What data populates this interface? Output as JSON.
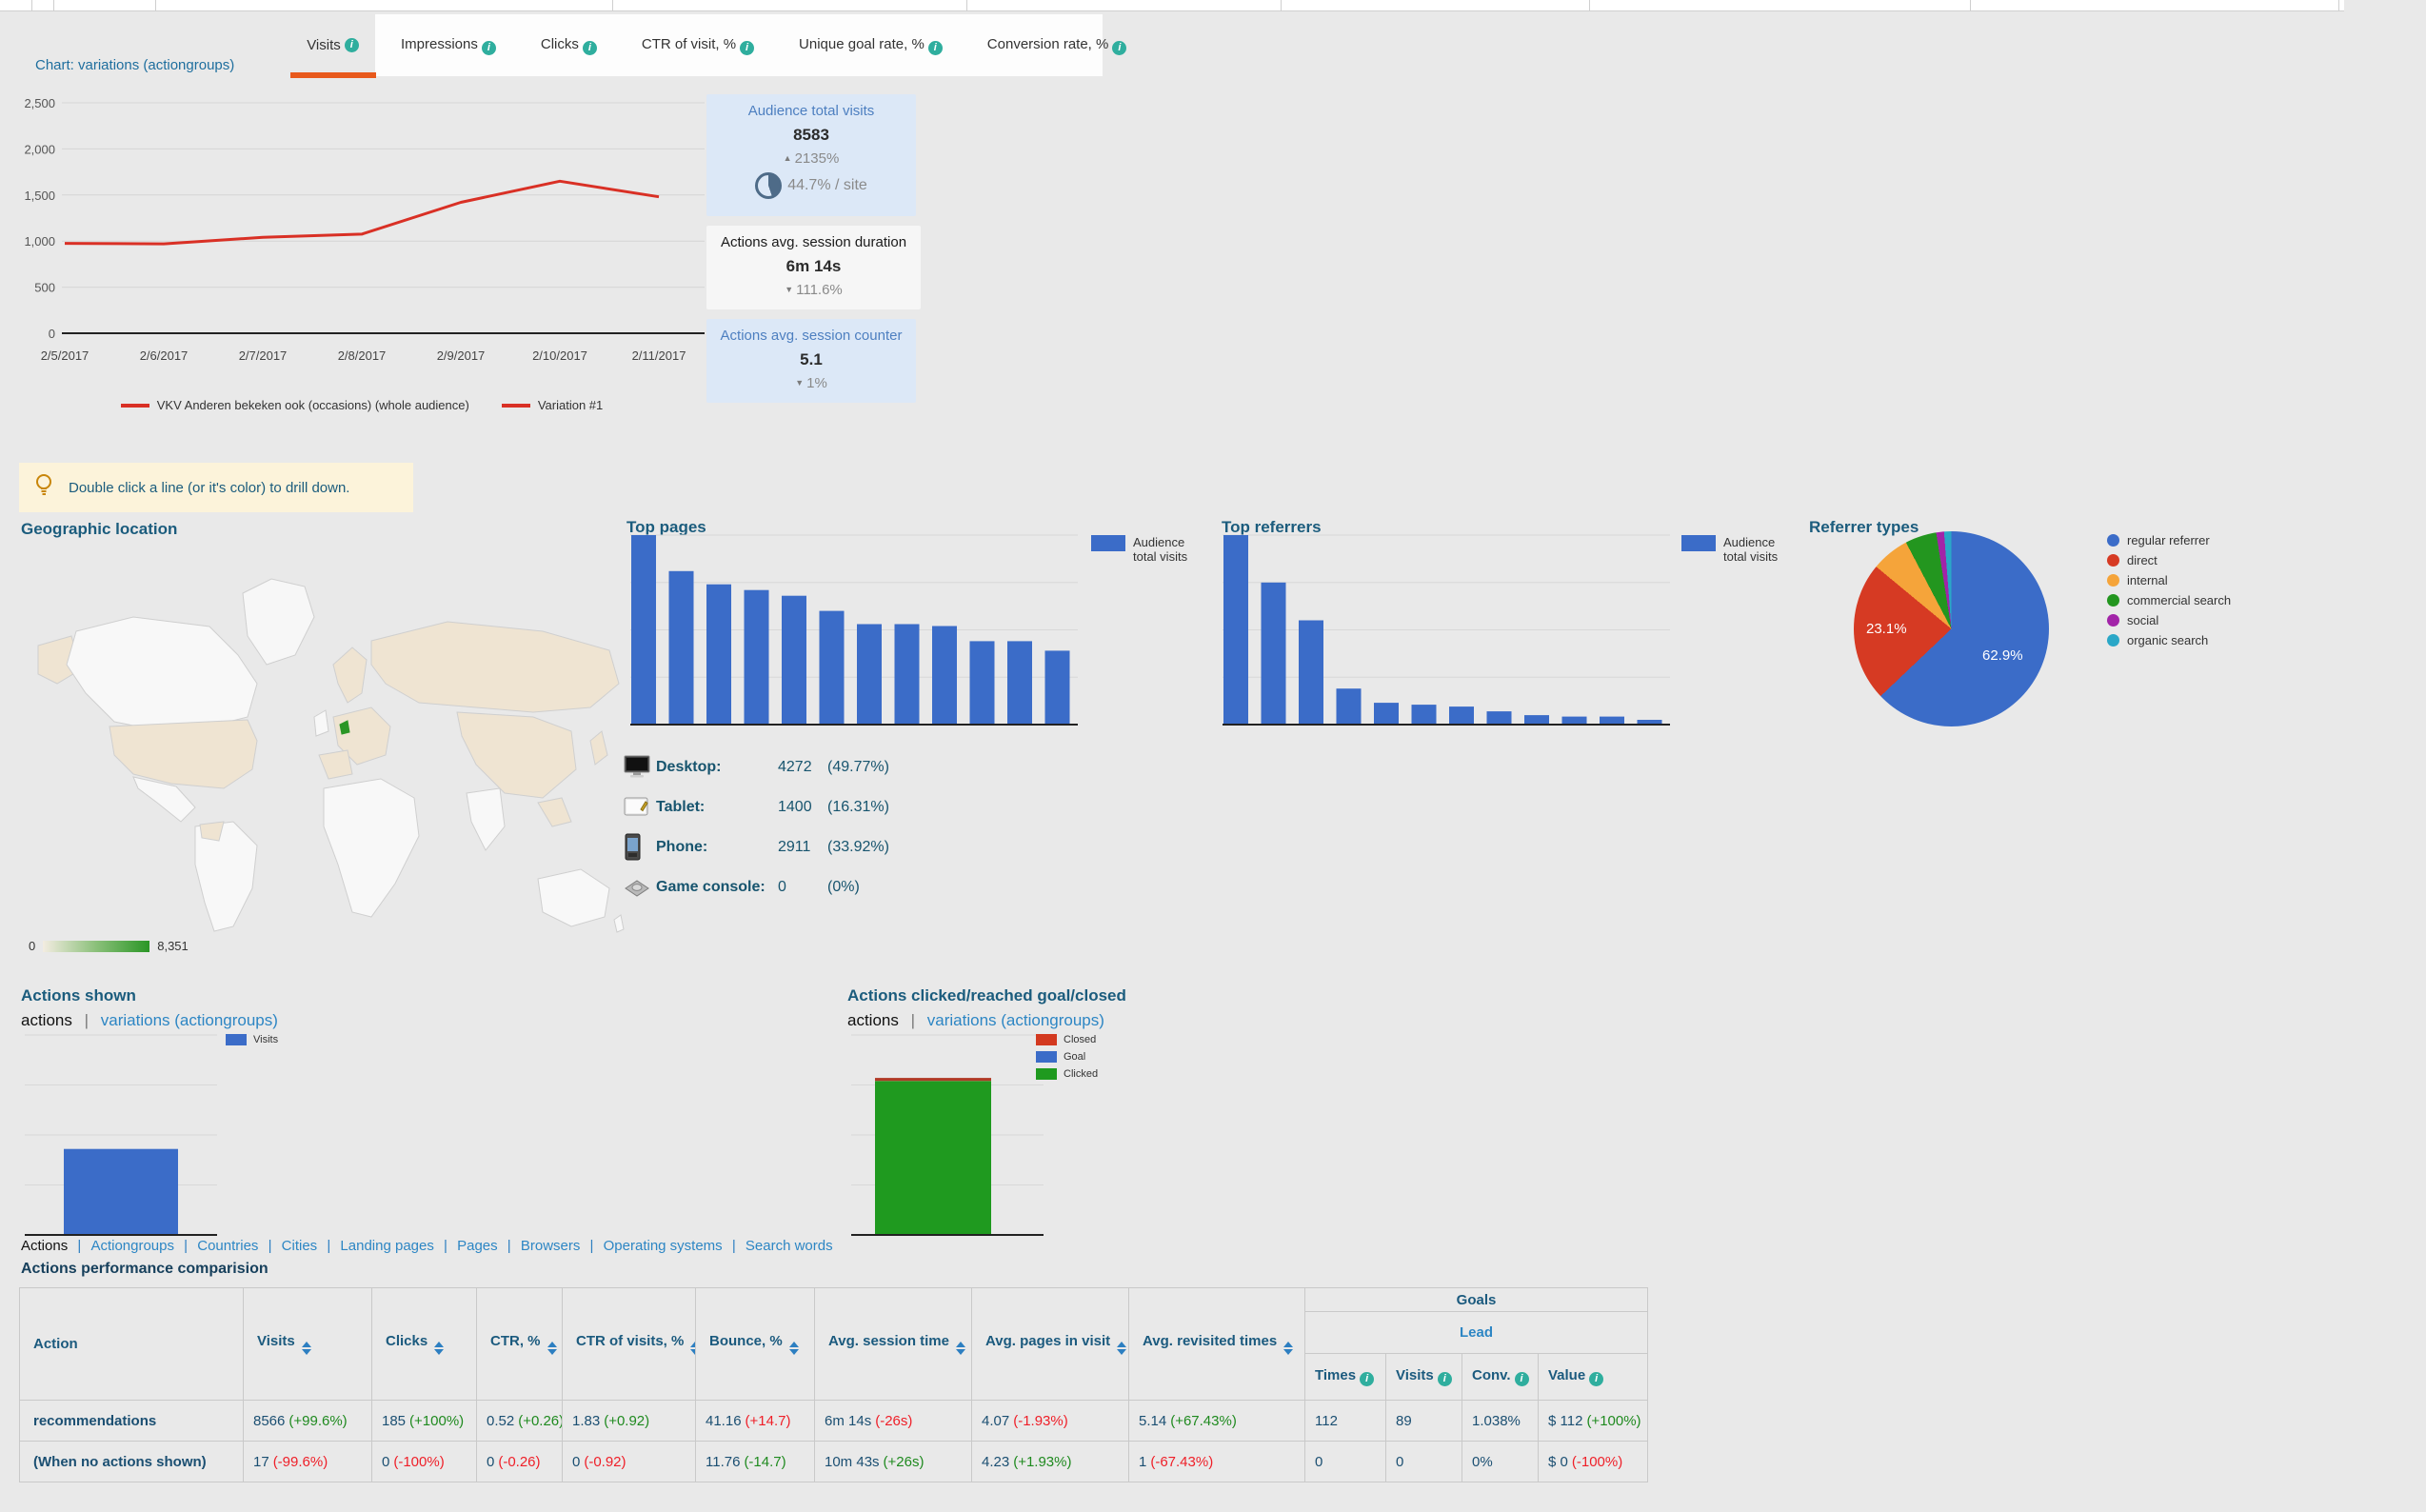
{
  "tabs": [
    {
      "label": "Visits",
      "active": true
    },
    {
      "label": "Impressions",
      "active": false
    },
    {
      "label": "Clicks",
      "active": false
    },
    {
      "label": "CTR of visit, %",
      "active": false
    },
    {
      "label": "Unique goal rate, %",
      "active": false
    },
    {
      "label": "Conversion rate, %",
      "active": false
    }
  ],
  "accent": {
    "active_tab_underline": "#e8591c",
    "info_icon": "#2fae9e",
    "link_blue": "#2d86c4",
    "header_blue": "#1b5c7d",
    "bar_blue": "#3b6cc8"
  },
  "chart_data": [
    {
      "id": "variations-line",
      "type": "line",
      "title": "Chart: variations (actiongroups)",
      "x": [
        "2/5/2017",
        "2/6/2017",
        "2/7/2017",
        "2/8/2017",
        "2/9/2017",
        "2/10/2017",
        "2/11/2017"
      ],
      "y_ticks": [
        "2,500",
        "2,000",
        "1,500",
        "1,000",
        "500",
        "0"
      ],
      "ylim": [
        0,
        2500
      ],
      "grid": true,
      "series": [
        {
          "name": "VKV Anderen bekeken ook (occasions) (whole audience)",
          "color": "#d93025",
          "values": [
            975,
            970,
            1040,
            1075,
            1420,
            1650,
            1480
          ]
        }
      ],
      "legend": [
        {
          "label": "VKV Anderen bekeken ook (occasions) (whole audience)",
          "color": "#d93025"
        },
        {
          "label": "Variation #1",
          "color": "#d93025"
        }
      ],
      "legend_position": "bottom"
    },
    {
      "id": "top-pages",
      "type": "bar",
      "title": "Top pages",
      "unit": "relative-% (no axis labels shown)",
      "values": [
        100,
        81,
        74,
        71,
        68,
        60,
        53,
        53,
        52,
        44,
        44,
        39
      ],
      "color": "#3b6cc8",
      "legend": [
        {
          "label": "Audience total visits",
          "color": "#3b6cc8"
        }
      ],
      "legend_position": "right"
    },
    {
      "id": "top-referrers",
      "type": "bar",
      "title": "Top referrers",
      "unit": "relative-% (no axis labels shown)",
      "values": [
        100,
        75,
        55,
        19,
        11.5,
        10.5,
        9.5,
        7,
        5,
        4.2,
        4.2,
        2.5
      ],
      "color": "#3b6cc8",
      "legend": [
        {
          "label": "Audience total visits",
          "color": "#3b6cc8"
        }
      ],
      "legend_position": "right"
    },
    {
      "id": "referrer-types",
      "type": "pie",
      "title": "Referrer types",
      "slices": [
        {
          "label": "regular referrer",
          "value": 62.9,
          "color": "#3b6cc8",
          "pct_label": "62.9%"
        },
        {
          "label": "direct",
          "value": 23.1,
          "color": "#d63a23",
          "pct_label": "23.1%"
        },
        {
          "label": "internal",
          "value": 6.3,
          "color": "#f5a43a",
          "pct_label": ""
        },
        {
          "label": "commercial search",
          "value": 5.2,
          "color": "#23961f",
          "pct_label": ""
        },
        {
          "label": "social",
          "value": 1.3,
          "color": "#a224a8",
          "pct_label": ""
        },
        {
          "label": "organic search",
          "value": 1.2,
          "color": "#2aa7c7",
          "pct_label": ""
        }
      ],
      "legend_position": "right"
    },
    {
      "id": "actions-shown",
      "type": "bar",
      "title": "Actions shown",
      "unit": "relative-% (no axis labels shown)",
      "values": [
        43
      ],
      "color": "#3b6cc8",
      "legend": [
        {
          "label": "Visits",
          "color": "#3b6cc8"
        }
      ],
      "legend_position": "right"
    },
    {
      "id": "actions-clicked",
      "type": "stacked-bar",
      "title": "Actions clicked/reached goal/closed",
      "unit": "relative-% (no axis labels shown)",
      "segments": [
        {
          "label": "Clicked",
          "value": 77,
          "color": "#1f9a1f"
        },
        {
          "label": "Closed",
          "value": 1.5,
          "color": "#b03a26"
        }
      ],
      "legend": [
        {
          "label": "Closed",
          "color": "#d3391f"
        },
        {
          "label": "Goal",
          "color": "#3b6cc8"
        },
        {
          "label": "Clicked",
          "color": "#1f9a1f"
        }
      ],
      "legend_position": "right"
    }
  ],
  "stat_cards": [
    {
      "title": "Audience total visits",
      "value": "8583",
      "change": "2135%",
      "change_dir": "up",
      "extra": "44.7% / site",
      "pie_pct": 44.7,
      "bg": "#dce8f7",
      "title_color": "#4d7fc0"
    },
    {
      "title": "Actions avg. session duration",
      "value": "6m 14s",
      "change": "111.6%",
      "change_dir": "down",
      "extra": "",
      "bg": "#f6f6f6",
      "title_color": "#1a1a1a"
    },
    {
      "title": "Actions avg. session counter",
      "value": "5.1",
      "change": "1%",
      "change_dir": "down",
      "extra": "",
      "bg": "#dce8f7",
      "title_color": "#4d7fc0"
    }
  ],
  "tip": {
    "text": "Double click a line (or it's color) to drill down."
  },
  "geographic": {
    "title": "Geographic location",
    "legend_min": "0",
    "legend_max": "8,351",
    "highlight_country": "Netherlands",
    "highlight_color": "#2a9626"
  },
  "devices": [
    {
      "icon": "desktop-icon",
      "label": "Desktop:",
      "value": "4272",
      "pct": "(49.77%)"
    },
    {
      "icon": "tablet-icon",
      "label": "Tablet:",
      "value": "1400",
      "pct": "(16.31%)"
    },
    {
      "icon": "phone-icon",
      "label": "Phone:",
      "value": "2911",
      "pct": "(33.92%)"
    },
    {
      "icon": "game-console-icon",
      "label": "Game console:",
      "value": "0",
      "pct": "(0%)"
    }
  ],
  "actions_shown_nav": {
    "active": "actions",
    "link": "variations (actiongroups)"
  },
  "actions_clicked_nav": {
    "active": "actions",
    "link": "variations (actiongroups)"
  },
  "bottom_nav": {
    "active": "Actions",
    "links": [
      "Actiongroups",
      "Countries",
      "Cities",
      "Landing pages",
      "Pages",
      "Browsers",
      "Operating systems",
      "Search words"
    ]
  },
  "table": {
    "caption": "Actions performance comparision",
    "columns": [
      "Action",
      "Visits",
      "Clicks",
      "CTR, %",
      "CTR of visits, %",
      "Bounce, %",
      "Avg. session time",
      "Avg. pages in visit",
      "Avg. revisited times"
    ],
    "sortable": [
      false,
      true,
      true,
      true,
      true,
      true,
      true,
      true,
      true
    ],
    "goals_group": {
      "label": "Goals",
      "sub_label": "Lead",
      "columns": [
        "Times",
        "Visits",
        "Conv.",
        "Value"
      ]
    },
    "rows": [
      {
        "action": "recommendations",
        "cells": [
          {
            "text": "8566",
            "delta": "(+99.6%)",
            "delta_color": "green"
          },
          {
            "text": "185",
            "delta": "(+100%)",
            "delta_color": "green"
          },
          {
            "text": "0.52",
            "delta": "(+0.26)",
            "delta_color": "green"
          },
          {
            "text": "1.83",
            "delta": "(+0.92)",
            "delta_color": "green"
          },
          {
            "text": "41.16",
            "delta": "(+14.7)",
            "delta_color": "red"
          },
          {
            "text": "6m 14s",
            "delta": "(-26s)",
            "delta_color": "red"
          },
          {
            "text": "4.07",
            "delta": "(-1.93%)",
            "delta_color": "red"
          },
          {
            "text": "5.14",
            "delta": "(+67.43%)",
            "delta_color": "green"
          },
          {
            "text": "112",
            "delta": "",
            "delta_color": ""
          },
          {
            "text": "89",
            "delta": "",
            "delta_color": ""
          },
          {
            "text": "1.038%",
            "delta": "",
            "delta_color": ""
          },
          {
            "text": "$ 112",
            "delta": "(+100%)",
            "delta_color": "green"
          }
        ]
      },
      {
        "action": "(When no actions shown)",
        "cells": [
          {
            "text": "17",
            "delta": "(-99.6%)",
            "delta_color": "red"
          },
          {
            "text": "0",
            "delta": "(-100%)",
            "delta_color": "red"
          },
          {
            "text": "0",
            "delta": "(-0.26)",
            "delta_color": "red"
          },
          {
            "text": "0",
            "delta": "(-0.92)",
            "delta_color": "red"
          },
          {
            "text": "11.76",
            "delta": "(-14.7)",
            "delta_color": "green"
          },
          {
            "text": "10m 43s",
            "delta": "(+26s)",
            "delta_color": "green"
          },
          {
            "text": "4.23",
            "delta": "(+1.93%)",
            "delta_color": "green"
          },
          {
            "text": "1",
            "delta": "(-67.43%)",
            "delta_color": "red"
          },
          {
            "text": "0",
            "delta": "",
            "delta_color": ""
          },
          {
            "text": "0",
            "delta": "",
            "delta_color": ""
          },
          {
            "text": "0%",
            "delta": "",
            "delta_color": ""
          },
          {
            "text": "$ 0",
            "delta": "(-100%)",
            "delta_color": "red"
          }
        ]
      }
    ]
  }
}
